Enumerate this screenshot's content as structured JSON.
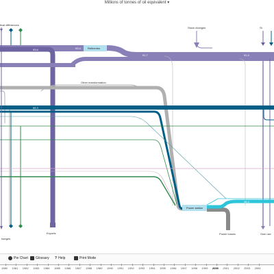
{
  "unit_selector": "Millions of tonnes of oil equivalent",
  "labels": {
    "statistical_differences": "tical differences",
    "stock_changes": "Stock changes",
    "refineries": "Refineries",
    "other_transformation": "Other transformation",
    "power_station": "Power station",
    "exports": "Exports",
    "power_losses": "Power losses",
    "own_use": "Own use",
    "stock_changes_bottom": "hanges"
  },
  "flow_values": {
    "v93_6": "93.6",
    "v93_4": "93.4",
    "v91_7": "91.7",
    "v91_4": "91.4",
    "v68_3": "68.3",
    "v38_3": "38.3"
  },
  "colors": {
    "oil": "#8a80b8",
    "oil_dark": "#6d64a2",
    "refineries_box": "#b3e0ef",
    "gas": "#005f87",
    "coal": "#b0b0b0",
    "green": "#2f8a4e",
    "electricity": "#2ec4d9",
    "power_loss": "#8a8a8a",
    "teal": "#4f9aa3",
    "pink": "#d7a4c4"
  },
  "toolbar": {
    "pie_chart": "Pie Chart",
    "glossary": "Glossary",
    "help": "Help",
    "print_mode": "Print Mode"
  },
  "timeline": {
    "years": [
      "1980",
      "1981",
      "1982",
      "1983",
      "1984",
      "1985",
      "1986",
      "1987",
      "1988",
      "1989",
      "1990",
      "1991",
      "1992",
      "1993",
      "1994",
      "1995",
      "1996",
      "1997",
      "1998",
      "1999",
      "2000",
      "2001",
      "2002",
      "2003",
      "2004"
    ],
    "selected_year": "2000"
  }
}
